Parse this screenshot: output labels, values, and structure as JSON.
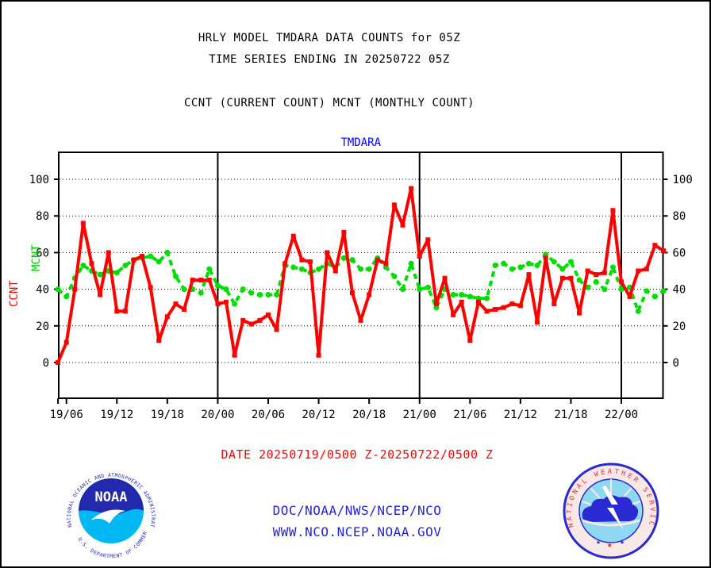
{
  "titles": {
    "line1": "HRLY MODEL TMDARA DATA COUNTS for 05Z",
    "line2": "TIME SERIES ENDING IN 20250722 05Z",
    "line3": "CCNT (CURRENT COUNT) MCNT (MONTHLY COUNT)"
  },
  "chart_data": {
    "type": "line",
    "title": "TMDARA",
    "title_color": "#0000ff",
    "x_start_hour_label": "19/05",
    "x_tick_labels": [
      "19/06",
      "19/12",
      "19/18",
      "20/00",
      "20/06",
      "20/12",
      "20/18",
      "21/00",
      "21/06",
      "21/12",
      "21/18",
      "22/00"
    ],
    "x_tick_hours": [
      1,
      7,
      13,
      19,
      25,
      31,
      37,
      43,
      49,
      55,
      61,
      67
    ],
    "day_line_hours": [
      19,
      43,
      67
    ],
    "y_ticks": [
      0,
      20,
      40,
      60,
      80,
      100
    ],
    "y_axis_sides": [
      "left",
      "right"
    ],
    "ylim": [
      -20,
      114
    ],
    "grid": "dotted-horizontal",
    "legend_position": "left-axis-vertical",
    "axis_legend": [
      {
        "label": "CCNT",
        "color": "#ff0000"
      },
      {
        "label": "MCNT",
        "color": "#00cc00"
      }
    ],
    "hours_span": 72,
    "series": [
      {
        "name": "MCNT",
        "color": "#00dd00",
        "line_style": "dashed",
        "marker": "circle",
        "values": [
          40,
          36,
          46,
          53,
          50,
          48,
          50,
          49,
          53,
          56,
          57,
          58,
          55,
          60,
          47,
          40,
          40,
          38,
          51,
          42,
          40,
          32,
          40,
          38,
          37,
          37,
          37,
          53,
          52,
          51,
          49,
          51,
          54,
          52,
          57,
          56,
          51,
          51,
          57,
          52,
          47,
          40,
          54,
          40,
          41,
          30,
          40,
          37,
          37,
          36,
          35,
          35,
          53,
          54,
          51,
          52,
          54,
          53,
          59,
          55,
          51,
          55,
          45,
          41,
          44,
          40,
          52,
          40,
          41,
          28,
          39,
          36,
          39
        ]
      },
      {
        "name": "CCNT",
        "color": "#ff0000",
        "line_style": "solid",
        "marker": "square",
        "values": [
          0,
          11,
          40,
          76,
          54,
          37,
          60,
          28,
          28,
          56,
          58,
          41,
          12,
          25,
          32,
          29,
          45,
          45,
          45,
          32,
          33,
          4,
          23,
          21,
          23,
          26,
          18,
          54,
          69,
          56,
          55,
          4,
          60,
          50,
          71,
          38,
          23,
          37,
          56,
          54,
          86,
          75,
          95,
          58,
          67,
          32,
          46,
          26,
          33,
          12,
          33,
          28,
          29,
          30,
          32,
          31,
          48,
          22,
          57,
          32,
          46,
          46,
          27,
          50,
          48,
          49,
          83,
          44,
          36,
          50,
          51,
          64,
          61
        ]
      }
    ]
  },
  "date_caption": {
    "text": "DATE 20250719/0500 Z-20250722/0500 Z",
    "color": "#ff0000"
  },
  "footer": {
    "doc_line": "DOC/NOAA/NWS/NCEP/NCO",
    "url_line": "WWW.NCO.NCEP.NOAA.GOV",
    "link_color": "#2222dd",
    "noaa_logo": {
      "acronym": "NOAA",
      "ring_top": "NATIONAL OCEANIC AND ATMOSPHERIC ADMINISTRATION",
      "ring_bottom": "U.S. DEPARTMENT OF COMMERCE"
    },
    "nws_logo": {
      "ring_text": "NATIONAL WEATHER SERVICE"
    }
  }
}
